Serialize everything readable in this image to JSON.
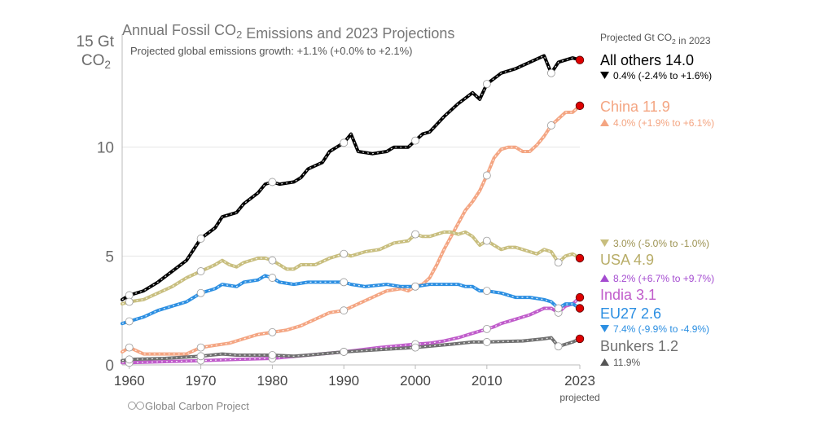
{
  "chart_data": {
    "type": "line",
    "title": "Annual Fossil CO2 Emissions and 2023 Projections",
    "subtitle": "Projected global emissions growth: +1.1% (+0.0% to +2.1%)",
    "y_unit_top": "15 Gt",
    "y_unit_bottom": "CO2",
    "ylim": [
      0,
      15
    ],
    "yticks": [
      0,
      5,
      10
    ],
    "xlim": [
      1959,
      2023
    ],
    "xticks": [
      1960,
      1970,
      1980,
      1990,
      2000,
      2010,
      2023
    ],
    "x_projected_label": "projected",
    "legend_header": "Projected Gt CO2 in 2023",
    "credit": "Global Carbon Project",
    "grid": "horizontal",
    "series": [
      {
        "name": "All others",
        "value_2023": "14.0",
        "color": "#000000",
        "growth_color": "#000000",
        "growth_arrow": "down",
        "growth": "0.4% (-2.4% to +1.6%)",
        "points": [
          [
            1959,
            3.0
          ],
          [
            1960,
            3.2
          ],
          [
            1962,
            3.4
          ],
          [
            1964,
            3.8
          ],
          [
            1966,
            4.3
          ],
          [
            1968,
            4.8
          ],
          [
            1970,
            5.8
          ],
          [
            1972,
            6.3
          ],
          [
            1973,
            6.8
          ],
          [
            1975,
            7.0
          ],
          [
            1976,
            7.4
          ],
          [
            1978,
            7.9
          ],
          [
            1979,
            8.3
          ],
          [
            1980,
            8.4
          ],
          [
            1981,
            8.3
          ],
          [
            1983,
            8.4
          ],
          [
            1984,
            8.6
          ],
          [
            1985,
            9.0
          ],
          [
            1987,
            9.3
          ],
          [
            1988,
            9.8
          ],
          [
            1989,
            10.0
          ],
          [
            1990,
            10.2
          ],
          [
            1991,
            10.6
          ],
          [
            1992,
            9.8
          ],
          [
            1994,
            9.7
          ],
          [
            1996,
            9.8
          ],
          [
            1997,
            10.0
          ],
          [
            1999,
            10.0
          ],
          [
            2000,
            10.3
          ],
          [
            2001,
            10.6
          ],
          [
            2002,
            10.7
          ],
          [
            2004,
            11.4
          ],
          [
            2006,
            12.0
          ],
          [
            2008,
            12.5
          ],
          [
            2009,
            12.2
          ],
          [
            2010,
            12.9
          ],
          [
            2012,
            13.4
          ],
          [
            2014,
            13.6
          ],
          [
            2016,
            13.9
          ],
          [
            2018,
            14.2
          ],
          [
            2019,
            13.4
          ],
          [
            2020,
            13.9
          ],
          [
            2021,
            14.0
          ],
          [
            2022,
            14.1
          ],
          [
            2023,
            14.0
          ]
        ],
        "markers": [
          1960,
          1970,
          1980,
          1990,
          2000,
          2010,
          2019
        ]
      },
      {
        "name": "China",
        "value_2023": "11.9",
        "color": "#f4a582",
        "growth_color": "#f4a582",
        "growth_arrow": "up",
        "growth": "4.0% (+1.9% to +6.1%)",
        "points": [
          [
            1959,
            0.6
          ],
          [
            1960,
            0.8
          ],
          [
            1962,
            0.5
          ],
          [
            1965,
            0.5
          ],
          [
            1968,
            0.5
          ],
          [
            1970,
            0.8
          ],
          [
            1972,
            0.9
          ],
          [
            1974,
            1.0
          ],
          [
            1976,
            1.2
          ],
          [
            1978,
            1.4
          ],
          [
            1980,
            1.5
          ],
          [
            1982,
            1.6
          ],
          [
            1984,
            1.8
          ],
          [
            1986,
            2.1
          ],
          [
            1988,
            2.4
          ],
          [
            1990,
            2.5
          ],
          [
            1992,
            2.8
          ],
          [
            1994,
            3.1
          ],
          [
            1996,
            3.4
          ],
          [
            1998,
            3.5
          ],
          [
            1999,
            3.4
          ],
          [
            2000,
            3.6
          ],
          [
            2001,
            3.7
          ],
          [
            2002,
            4.0
          ],
          [
            2003,
            4.6
          ],
          [
            2004,
            5.3
          ],
          [
            2005,
            5.9
          ],
          [
            2006,
            6.5
          ],
          [
            2007,
            7.1
          ],
          [
            2008,
            7.5
          ],
          [
            2009,
            8.0
          ],
          [
            2010,
            8.7
          ],
          [
            2011,
            9.5
          ],
          [
            2012,
            9.9
          ],
          [
            2013,
            10.0
          ],
          [
            2014,
            10.0
          ],
          [
            2015,
            9.8
          ],
          [
            2016,
            9.8
          ],
          [
            2017,
            10.1
          ],
          [
            2018,
            10.5
          ],
          [
            2019,
            11.0
          ],
          [
            2020,
            11.3
          ],
          [
            2021,
            11.6
          ],
          [
            2022,
            11.6
          ],
          [
            2023,
            11.9
          ]
        ],
        "markers": [
          1960,
          1970,
          1980,
          1990,
          2000,
          2010,
          2019
        ]
      },
      {
        "name": "USA",
        "value_2023": "4.9",
        "color": "#c8be7e",
        "growth_color": "#c8be7e",
        "growth_arrow": "down",
        "growth": "3.0% (-5.0% to -1.0%)",
        "points": [
          [
            1959,
            2.8
          ],
          [
            1960,
            2.9
          ],
          [
            1962,
            3.0
          ],
          [
            1964,
            3.3
          ],
          [
            1966,
            3.6
          ],
          [
            1968,
            4.0
          ],
          [
            1970,
            4.3
          ],
          [
            1972,
            4.6
          ],
          [
            1973,
            4.8
          ],
          [
            1974,
            4.6
          ],
          [
            1975,
            4.5
          ],
          [
            1976,
            4.7
          ],
          [
            1978,
            4.9
          ],
          [
            1979,
            4.9
          ],
          [
            1980,
            4.8
          ],
          [
            1981,
            4.6
          ],
          [
            1982,
            4.4
          ],
          [
            1983,
            4.4
          ],
          [
            1984,
            4.6
          ],
          [
            1986,
            4.6
          ],
          [
            1988,
            4.9
          ],
          [
            1989,
            5.0
          ],
          [
            1990,
            5.1
          ],
          [
            1991,
            5.0
          ],
          [
            1993,
            5.2
          ],
          [
            1995,
            5.3
          ],
          [
            1997,
            5.6
          ],
          [
            1999,
            5.7
          ],
          [
            2000,
            6.0
          ],
          [
            2001,
            5.9
          ],
          [
            2002,
            5.9
          ],
          [
            2004,
            6.1
          ],
          [
            2005,
            6.1
          ],
          [
            2006,
            6.0
          ],
          [
            2007,
            6.1
          ],
          [
            2008,
            5.9
          ],
          [
            2009,
            5.5
          ],
          [
            2010,
            5.7
          ],
          [
            2011,
            5.5
          ],
          [
            2012,
            5.3
          ],
          [
            2013,
            5.4
          ],
          [
            2014,
            5.4
          ],
          [
            2015,
            5.3
          ],
          [
            2016,
            5.2
          ],
          [
            2017,
            5.1
          ],
          [
            2018,
            5.3
          ],
          [
            2019,
            5.2
          ],
          [
            2020,
            4.7
          ],
          [
            2021,
            5.0
          ],
          [
            2022,
            5.1
          ],
          [
            2023,
            4.9
          ]
        ],
        "markers": [
          1960,
          1970,
          1980,
          1990,
          2000,
          2010,
          2020
        ]
      },
      {
        "name": "India",
        "value_2023": "3.1",
        "color": "#c05ccb",
        "growth_color": "#a44bd0",
        "growth_arrow": "up",
        "growth": "8.2% (+6.7% to +9.7%)",
        "points": [
          [
            1959,
            0.1
          ],
          [
            1960,
            0.1
          ],
          [
            1965,
            0.15
          ],
          [
            1970,
            0.2
          ],
          [
            1975,
            0.25
          ],
          [
            1980,
            0.3
          ],
          [
            1985,
            0.45
          ],
          [
            1990,
            0.6
          ],
          [
            1995,
            0.8
          ],
          [
            2000,
            0.95
          ],
          [
            2002,
            1.0
          ],
          [
            2004,
            1.1
          ],
          [
            2006,
            1.25
          ],
          [
            2008,
            1.45
          ],
          [
            2010,
            1.65
          ],
          [
            2011,
            1.75
          ],
          [
            2012,
            1.9
          ],
          [
            2014,
            2.1
          ],
          [
            2016,
            2.3
          ],
          [
            2018,
            2.6
          ],
          [
            2019,
            2.6
          ],
          [
            2020,
            2.4
          ],
          [
            2021,
            2.7
          ],
          [
            2022,
            2.8
          ],
          [
            2023,
            3.1
          ]
        ],
        "markers": [
          1960,
          1970,
          1980,
          1990,
          2000,
          2010,
          2020
        ]
      },
      {
        "name": "EU27",
        "value_2023": "2.6",
        "color": "#2c8fe2",
        "growth_color": "#2c8fe2",
        "growth_arrow": "down",
        "growth": "7.4% (-9.9% to -4.9%)",
        "points": [
          [
            1959,
            1.9
          ],
          [
            1960,
            2.0
          ],
          [
            1962,
            2.2
          ],
          [
            1964,
            2.5
          ],
          [
            1966,
            2.7
          ],
          [
            1968,
            2.9
          ],
          [
            1970,
            3.3
          ],
          [
            1972,
            3.5
          ],
          [
            1973,
            3.7
          ],
          [
            1975,
            3.6
          ],
          [
            1976,
            3.8
          ],
          [
            1978,
            3.9
          ],
          [
            1979,
            4.1
          ],
          [
            1980,
            4.0
          ],
          [
            1981,
            3.8
          ],
          [
            1983,
            3.7
          ],
          [
            1985,
            3.8
          ],
          [
            1988,
            3.8
          ],
          [
            1990,
            3.8
          ],
          [
            1991,
            3.7
          ],
          [
            1993,
            3.6
          ],
          [
            1996,
            3.7
          ],
          [
            1998,
            3.6
          ],
          [
            2000,
            3.6
          ],
          [
            2002,
            3.7
          ],
          [
            2004,
            3.7
          ],
          [
            2006,
            3.7
          ],
          [
            2007,
            3.6
          ],
          [
            2008,
            3.6
          ],
          [
            2009,
            3.4
          ],
          [
            2010,
            3.4
          ],
          [
            2012,
            3.3
          ],
          [
            2014,
            3.1
          ],
          [
            2016,
            3.1
          ],
          [
            2018,
            3.0
          ],
          [
            2019,
            2.9
          ],
          [
            2020,
            2.6
          ],
          [
            2021,
            2.8
          ],
          [
            2022,
            2.8
          ],
          [
            2023,
            2.6
          ]
        ],
        "markers": [
          1960,
          1970,
          1980,
          1990,
          2000,
          2010,
          2020
        ]
      },
      {
        "name": "Bunkers",
        "value_2023": "1.2",
        "color": "#707070",
        "growth_color": "#555555",
        "growth_arrow": "up",
        "growth": "11.9%",
        "points": [
          [
            1959,
            0.2
          ],
          [
            1960,
            0.25
          ],
          [
            1965,
            0.3
          ],
          [
            1970,
            0.4
          ],
          [
            1973,
            0.5
          ],
          [
            1975,
            0.45
          ],
          [
            1980,
            0.45
          ],
          [
            1983,
            0.4
          ],
          [
            1985,
            0.45
          ],
          [
            1990,
            0.6
          ],
          [
            1995,
            0.7
          ],
          [
            2000,
            0.8
          ],
          [
            2005,
            0.95
          ],
          [
            2008,
            1.05
          ],
          [
            2010,
            1.05
          ],
          [
            2015,
            1.1
          ],
          [
            2018,
            1.2
          ],
          [
            2019,
            1.25
          ],
          [
            2020,
            0.85
          ],
          [
            2021,
            0.95
          ],
          [
            2022,
            1.05
          ],
          [
            2023,
            1.2
          ]
        ],
        "markers": [
          1960,
          1970,
          1980,
          1990,
          2000,
          2010,
          2020
        ]
      }
    ]
  }
}
